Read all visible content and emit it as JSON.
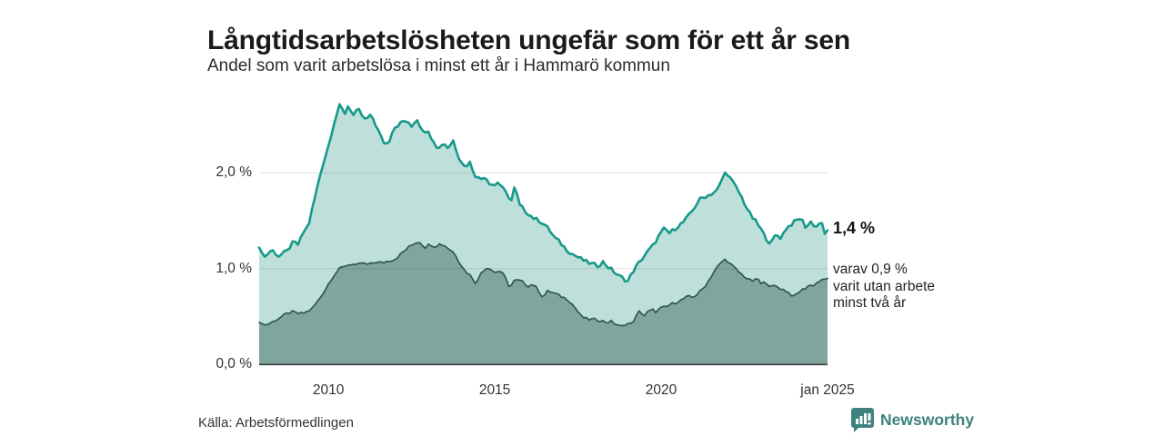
{
  "header": {
    "title": "Långtidsarbetslösheten ungefär som för ett år sen",
    "subtitle": "Andel som varit arbetslösa i minst ett år i Hammarö kommun"
  },
  "chart_data": {
    "type": "area",
    "unit": "%",
    "x_domain": [
      2007.92,
      2025.0
    ],
    "y_domain": [
      0,
      2.85
    ],
    "grid": "horizontal",
    "x_ticks": [
      {
        "value": 2010,
        "label": "2010"
      },
      {
        "value": 2015,
        "label": "2015"
      },
      {
        "value": 2020,
        "label": "2020"
      },
      {
        "value": 2025,
        "label": "jan 2025"
      }
    ],
    "y_ticks": [
      {
        "value": 0,
        "label": "0,0 %"
      },
      {
        "value": 1,
        "label": "1,0 %"
      },
      {
        "value": 2,
        "label": "2,0 %"
      }
    ],
    "series": [
      {
        "name": "Andel arbetslösa minst ett år",
        "color": "#18998b",
        "fill": "#bfe0da",
        "end_value": 1.4,
        "points": [
          [
            2007.92,
            1.22
          ],
          [
            2008.08,
            1.12
          ],
          [
            2008.3,
            1.2
          ],
          [
            2008.5,
            1.13
          ],
          [
            2008.75,
            1.18
          ],
          [
            2008.95,
            1.28
          ],
          [
            2009.1,
            1.25
          ],
          [
            2009.25,
            1.38
          ],
          [
            2009.4,
            1.45
          ],
          [
            2009.6,
            1.75
          ],
          [
            2009.8,
            2.05
          ],
          [
            2010.0,
            2.28
          ],
          [
            2010.15,
            2.5
          ],
          [
            2010.33,
            2.7
          ],
          [
            2010.5,
            2.62
          ],
          [
            2010.6,
            2.71
          ],
          [
            2010.75,
            2.6
          ],
          [
            2010.9,
            2.66
          ],
          [
            2011.1,
            2.55
          ],
          [
            2011.3,
            2.6
          ],
          [
            2011.5,
            2.44
          ],
          [
            2011.65,
            2.32
          ],
          [
            2011.8,
            2.3
          ],
          [
            2011.95,
            2.47
          ],
          [
            2012.1,
            2.5
          ],
          [
            2012.3,
            2.55
          ],
          [
            2012.5,
            2.48
          ],
          [
            2012.65,
            2.57
          ],
          [
            2012.8,
            2.46
          ],
          [
            2013.0,
            2.42
          ],
          [
            2013.2,
            2.32
          ],
          [
            2013.3,
            2.24
          ],
          [
            2013.45,
            2.32
          ],
          [
            2013.6,
            2.26
          ],
          [
            2013.75,
            2.34
          ],
          [
            2013.9,
            2.18
          ],
          [
            2014.1,
            2.06
          ],
          [
            2014.25,
            2.11
          ],
          [
            2014.4,
            1.98
          ],
          [
            2014.55,
            1.93
          ],
          [
            2014.7,
            1.97
          ],
          [
            2014.85,
            1.89
          ],
          [
            2015.0,
            1.87
          ],
          [
            2015.1,
            1.91
          ],
          [
            2015.25,
            1.83
          ],
          [
            2015.4,
            1.76
          ],
          [
            2015.5,
            1.71
          ],
          [
            2015.6,
            1.86
          ],
          [
            2015.75,
            1.66
          ],
          [
            2015.9,
            1.61
          ],
          [
            2016.05,
            1.56
          ],
          [
            2016.2,
            1.52
          ],
          [
            2016.35,
            1.5
          ],
          [
            2016.5,
            1.46
          ],
          [
            2016.65,
            1.4
          ],
          [
            2016.8,
            1.32
          ],
          [
            2016.95,
            1.28
          ],
          [
            2017.1,
            1.22
          ],
          [
            2017.3,
            1.16
          ],
          [
            2017.5,
            1.12
          ],
          [
            2017.7,
            1.08
          ],
          [
            2017.9,
            1.05
          ],
          [
            2018.1,
            1.03
          ],
          [
            2018.25,
            1.07
          ],
          [
            2018.4,
            1.02
          ],
          [
            2018.55,
            0.98
          ],
          [
            2018.7,
            0.93
          ],
          [
            2018.85,
            0.9
          ],
          [
            2019.0,
            0.87
          ],
          [
            2019.15,
            0.97
          ],
          [
            2019.35,
            1.07
          ],
          [
            2019.55,
            1.16
          ],
          [
            2019.75,
            1.24
          ],
          [
            2019.95,
            1.35
          ],
          [
            2020.1,
            1.42
          ],
          [
            2020.25,
            1.37
          ],
          [
            2020.45,
            1.43
          ],
          [
            2020.65,
            1.48
          ],
          [
            2020.85,
            1.56
          ],
          [
            2021.0,
            1.64
          ],
          [
            2021.15,
            1.72
          ],
          [
            2021.3,
            1.75
          ],
          [
            2021.5,
            1.78
          ],
          [
            2021.7,
            1.82
          ],
          [
            2021.85,
            1.95
          ],
          [
            2021.95,
            2.02
          ],
          [
            2022.1,
            1.93
          ],
          [
            2022.25,
            1.85
          ],
          [
            2022.4,
            1.76
          ],
          [
            2022.55,
            1.65
          ],
          [
            2022.7,
            1.55
          ],
          [
            2022.85,
            1.49
          ],
          [
            2023.0,
            1.41
          ],
          [
            2023.15,
            1.32
          ],
          [
            2023.3,
            1.26
          ],
          [
            2023.45,
            1.36
          ],
          [
            2023.6,
            1.32
          ],
          [
            2023.75,
            1.42
          ],
          [
            2023.9,
            1.46
          ],
          [
            2024.05,
            1.5
          ],
          [
            2024.2,
            1.53
          ],
          [
            2024.35,
            1.43
          ],
          [
            2024.5,
            1.49
          ],
          [
            2024.65,
            1.43
          ],
          [
            2024.8,
            1.5
          ],
          [
            2024.92,
            1.36
          ],
          [
            2025.0,
            1.4
          ]
        ]
      },
      {
        "name": "varav utan arbete minst två år",
        "color": "#2e5851",
        "fill": "#7ea69f",
        "end_value": 0.9,
        "points": [
          [
            2007.92,
            0.44
          ],
          [
            2008.1,
            0.41
          ],
          [
            2008.3,
            0.44
          ],
          [
            2008.5,
            0.48
          ],
          [
            2008.7,
            0.52
          ],
          [
            2008.9,
            0.55
          ],
          [
            2009.1,
            0.53
          ],
          [
            2009.3,
            0.54
          ],
          [
            2009.5,
            0.58
          ],
          [
            2009.7,
            0.67
          ],
          [
            2009.9,
            0.78
          ],
          [
            2010.1,
            0.9
          ],
          [
            2010.3,
            0.99
          ],
          [
            2010.5,
            1.03
          ],
          [
            2010.7,
            1.05
          ],
          [
            2010.85,
            1.03
          ],
          [
            2011.0,
            1.06
          ],
          [
            2011.2,
            1.04
          ],
          [
            2011.4,
            1.07
          ],
          [
            2011.6,
            1.06
          ],
          [
            2011.8,
            1.08
          ],
          [
            2012.0,
            1.1
          ],
          [
            2012.2,
            1.16
          ],
          [
            2012.4,
            1.22
          ],
          [
            2012.6,
            1.27
          ],
          [
            2012.75,
            1.28
          ],
          [
            2012.9,
            1.22
          ],
          [
            2013.05,
            1.26
          ],
          [
            2013.2,
            1.23
          ],
          [
            2013.35,
            1.26
          ],
          [
            2013.5,
            1.24
          ],
          [
            2013.65,
            1.2
          ],
          [
            2013.8,
            1.16
          ],
          [
            2013.95,
            1.06
          ],
          [
            2014.1,
            0.98
          ],
          [
            2014.3,
            0.92
          ],
          [
            2014.45,
            0.84
          ],
          [
            2014.6,
            0.97
          ],
          [
            2014.8,
            1.02
          ],
          [
            2015.0,
            0.96
          ],
          [
            2015.15,
            0.98
          ],
          [
            2015.3,
            0.92
          ],
          [
            2015.45,
            0.8
          ],
          [
            2015.6,
            0.88
          ],
          [
            2015.8,
            0.87
          ],
          [
            2016.0,
            0.82
          ],
          [
            2016.15,
            0.84
          ],
          [
            2016.3,
            0.78
          ],
          [
            2016.45,
            0.7
          ],
          [
            2016.6,
            0.77
          ],
          [
            2016.8,
            0.74
          ],
          [
            2017.0,
            0.71
          ],
          [
            2017.2,
            0.68
          ],
          [
            2017.4,
            0.6
          ],
          [
            2017.6,
            0.5
          ],
          [
            2017.8,
            0.47
          ],
          [
            2018.0,
            0.47
          ],
          [
            2018.2,
            0.46
          ],
          [
            2018.35,
            0.44
          ],
          [
            2018.5,
            0.45
          ],
          [
            2018.65,
            0.42
          ],
          [
            2018.8,
            0.39
          ],
          [
            2018.95,
            0.43
          ],
          [
            2019.1,
            0.42
          ],
          [
            2019.25,
            0.5
          ],
          [
            2019.35,
            0.56
          ],
          [
            2019.5,
            0.51
          ],
          [
            2019.6,
            0.55
          ],
          [
            2019.75,
            0.57
          ],
          [
            2019.85,
            0.55
          ],
          [
            2020.0,
            0.59
          ],
          [
            2020.15,
            0.6
          ],
          [
            2020.3,
            0.63
          ],
          [
            2020.45,
            0.65
          ],
          [
            2020.6,
            0.67
          ],
          [
            2020.8,
            0.71
          ],
          [
            2020.95,
            0.7
          ],
          [
            2021.1,
            0.74
          ],
          [
            2021.25,
            0.79
          ],
          [
            2021.4,
            0.86
          ],
          [
            2021.55,
            0.95
          ],
          [
            2021.7,
            1.02
          ],
          [
            2021.85,
            1.08
          ],
          [
            2021.95,
            1.1
          ],
          [
            2022.1,
            1.04
          ],
          [
            2022.2,
            1.01
          ],
          [
            2022.35,
            0.96
          ],
          [
            2022.5,
            0.92
          ],
          [
            2022.65,
            0.88
          ],
          [
            2022.8,
            0.87
          ],
          [
            2022.9,
            0.9
          ],
          [
            2023.0,
            0.84
          ],
          [
            2023.15,
            0.86
          ],
          [
            2023.3,
            0.81
          ],
          [
            2023.45,
            0.82
          ],
          [
            2023.6,
            0.79
          ],
          [
            2023.75,
            0.77
          ],
          [
            2023.9,
            0.73
          ],
          [
            2024.0,
            0.71
          ],
          [
            2024.15,
            0.76
          ],
          [
            2024.3,
            0.79
          ],
          [
            2024.45,
            0.83
          ],
          [
            2024.55,
            0.82
          ],
          [
            2024.7,
            0.86
          ],
          [
            2024.85,
            0.88
          ],
          [
            2025.0,
            0.9
          ]
        ]
      }
    ]
  },
  "annotations": {
    "primary": "1,4 %",
    "secondary_lines": [
      "varav 0,9 %",
      "varit utan arbete",
      "minst två år"
    ]
  },
  "footer": {
    "source": "Källa: Arbetsförmedlingen",
    "brand": "Newsworthy"
  },
  "colors": {
    "accent_teal": "#18998b",
    "light_fill": "#bfe0da",
    "dark_stroke": "#2e5851",
    "dark_fill": "#7ea69f",
    "brand": "#3e827d",
    "baseline": "#3d3d3d"
  }
}
